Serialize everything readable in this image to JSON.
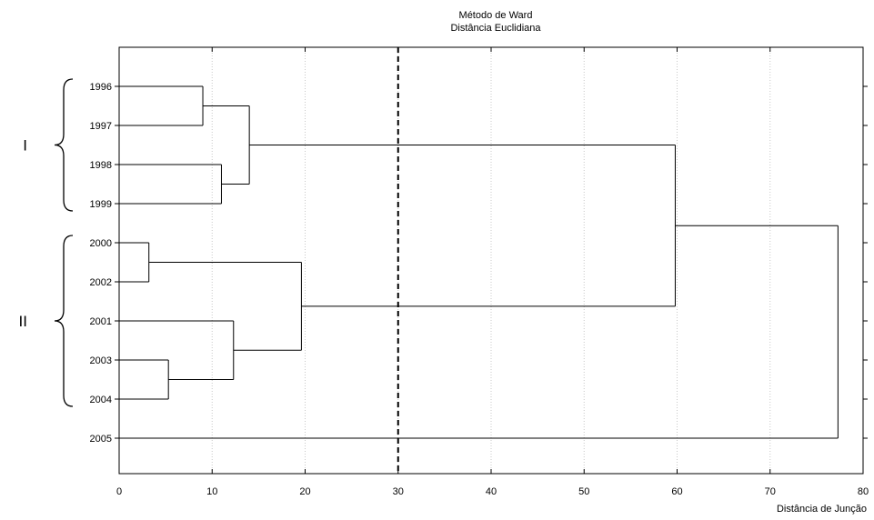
{
  "chart_data": {
    "type": "dendrogram",
    "title": "Método de Ward",
    "subtitle": "Distância Euclidiana",
    "xlabel": "Distância de Junção",
    "xlim": [
      0,
      80
    ],
    "x_ticks": [
      0,
      10,
      20,
      30,
      40,
      50,
      60,
      70,
      80
    ],
    "grid": "vertical dotted",
    "cut_line": 30,
    "leaves": [
      "1996",
      "1997",
      "1998",
      "1999",
      "2000",
      "2002",
      "2001",
      "2003",
      "2004",
      "2005"
    ],
    "merges": [
      {
        "a": "1996",
        "b": "1997",
        "height": 9
      },
      {
        "a": "1998",
        "b": "1999",
        "height": 11
      },
      {
        "a": "1996+1997",
        "b": "1998+1999",
        "height": 14
      },
      {
        "a": "2000",
        "b": "2002",
        "height": 3.2
      },
      {
        "a": "2003",
        "b": "2004",
        "height": 5.3
      },
      {
        "a": "2001",
        "b": "2003+2004",
        "height": 12.3
      },
      {
        "a": "2000+2002",
        "b": "2001+2003+2004",
        "height": 19.6
      },
      {
        "a": "I",
        "b": "2000..2004",
        "height": 59.8
      },
      {
        "a": "all",
        "b": "2005",
        "height": 77.3
      }
    ],
    "groups": [
      {
        "label": "I",
        "leaves": [
          "1996",
          "1997",
          "1998",
          "1999"
        ]
      },
      {
        "label": "II",
        "leaves": [
          "2000",
          "2002",
          "2001",
          "2003",
          "2004"
        ]
      }
    ]
  }
}
